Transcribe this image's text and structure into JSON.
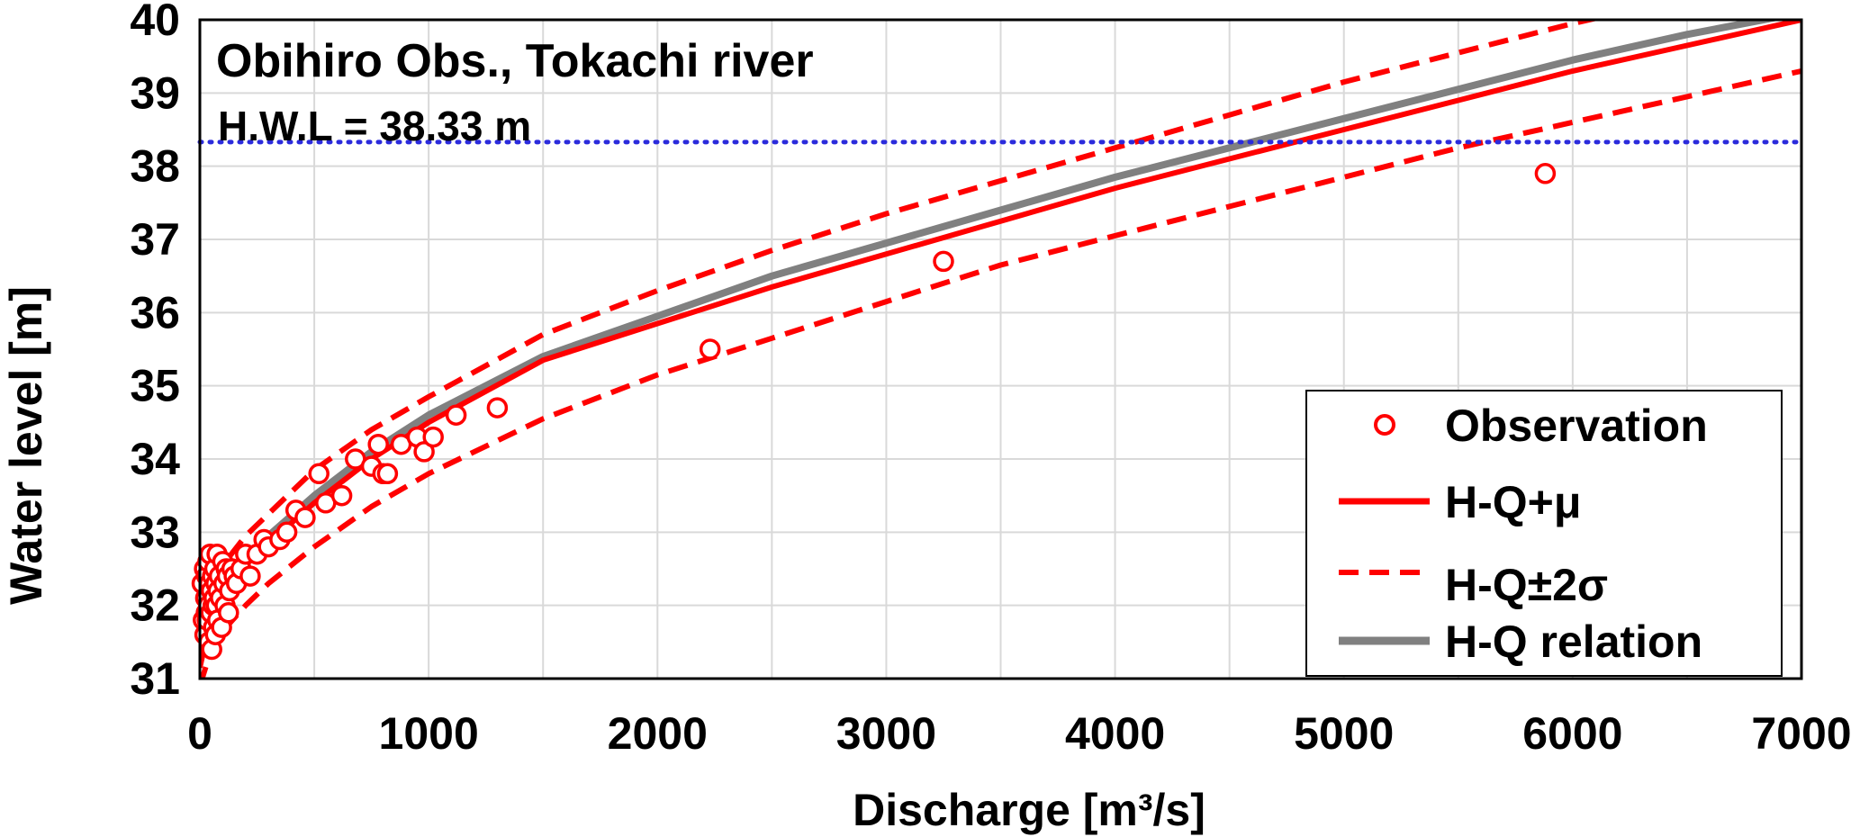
{
  "chart_data": {
    "type": "line",
    "title": "Obihiro Obs., Tokachi river",
    "annotation": "H.W.L = 38.33 m",
    "hwl": 38.33,
    "xlabel": "Discharge [m³/s]",
    "ylabel": "Water level [m]",
    "xlim": [
      0,
      7000
    ],
    "ylim": [
      31,
      40
    ],
    "xticks": [
      0,
      1000,
      2000,
      3000,
      4000,
      5000,
      6000,
      7000
    ],
    "yticks": [
      31,
      32,
      33,
      34,
      35,
      36,
      37,
      38,
      39,
      40
    ],
    "grid": true,
    "legend_position": "bottom-right",
    "legend": [
      "Observation",
      "H-Q+μ",
      "H-Q±2σ",
      "H-Q relation"
    ],
    "colors": {
      "observation": "#ff0000",
      "mean": "#ff0000",
      "band": "#ff0000",
      "hq_relation": "#808080",
      "hwl_line": "#2b2bdc",
      "grid": "#d9d9d9"
    },
    "series": [
      {
        "name": "H-Q+μ",
        "style": "solid",
        "x": [
          0,
          50,
          100,
          200,
          300,
          500,
          750,
          1000,
          1500,
          2000,
          2500,
          3000,
          3500,
          4000,
          4500,
          5000,
          5500,
          6000,
          6500,
          7000
        ],
        "y": [
          31.15,
          31.85,
          32.15,
          32.55,
          32.85,
          33.4,
          34.0,
          34.5,
          35.35,
          35.85,
          36.35,
          36.8,
          37.25,
          37.7,
          38.1,
          38.5,
          38.9,
          39.3,
          39.65,
          40.0
        ]
      },
      {
        "name": "H-Q+2σ",
        "style": "dashed",
        "x": [
          0,
          50,
          100,
          200,
          300,
          500,
          750,
          1000,
          1500,
          2000,
          2500,
          3000,
          3500,
          4000,
          4500,
          5000,
          5500,
          6000,
          6500
        ],
        "y": [
          31.5,
          32.25,
          32.55,
          32.95,
          33.25,
          33.85,
          34.4,
          34.85,
          35.7,
          36.3,
          36.85,
          37.35,
          37.8,
          38.25,
          38.7,
          39.15,
          39.55,
          39.95,
          40.3
        ]
      },
      {
        "name": "H-Q−2σ",
        "style": "dashed",
        "x": [
          0,
          50,
          100,
          200,
          300,
          500,
          750,
          1000,
          1500,
          2000,
          2500,
          3000,
          3500,
          4000,
          4500,
          5000,
          5500,
          6000,
          6500,
          7000
        ],
        "y": [
          30.9,
          31.4,
          31.65,
          32.0,
          32.3,
          32.8,
          33.35,
          33.8,
          34.55,
          35.15,
          35.65,
          36.15,
          36.65,
          37.05,
          37.45,
          37.85,
          38.25,
          38.6,
          38.95,
          39.3
        ]
      },
      {
        "name": "H-Q relation",
        "style": "solid",
        "x": [
          50,
          100,
          200,
          300,
          500,
          750,
          1000,
          1500,
          2000,
          2500,
          3000,
          3500,
          4000,
          4500,
          5000,
          5500,
          6000,
          6500,
          7000
        ],
        "y": [
          32.2,
          32.35,
          32.65,
          32.95,
          33.5,
          34.1,
          34.6,
          35.4,
          35.95,
          36.5,
          36.95,
          37.4,
          37.85,
          38.25,
          38.65,
          39.05,
          39.45,
          39.8,
          40.1
        ]
      }
    ],
    "observations": {
      "name": "Observation",
      "x": [
        10,
        15,
        20,
        22,
        25,
        28,
        30,
        32,
        35,
        38,
        40,
        42,
        45,
        48,
        50,
        52,
        55,
        58,
        60,
        62,
        65,
        68,
        70,
        72,
        75,
        78,
        80,
        85,
        90,
        95,
        100,
        105,
        110,
        115,
        120,
        125,
        130,
        140,
        150,
        160,
        180,
        200,
        220,
        250,
        280,
        300,
        350,
        380,
        420,
        460,
        520,
        550,
        620,
        680,
        750,
        780,
        800,
        820,
        880,
        950,
        980,
        1020,
        1120,
        1300,
        2230,
        3250,
        5880
      ],
      "y": [
        32.3,
        31.8,
        32.5,
        31.6,
        32.1,
        31.9,
        32.4,
        31.8,
        32.6,
        32.0,
        31.5,
        32.3,
        32.7,
        31.9,
        32.2,
        31.4,
        32.4,
        32.0,
        31.7,
        32.1,
        32.5,
        31.6,
        32.3,
        32.0,
        32.7,
        31.8,
        32.2,
        32.4,
        32.1,
        31.7,
        32.6,
        32.3,
        32.0,
        32.5,
        32.4,
        31.9,
        32.2,
        32.5,
        32.4,
        32.3,
        32.5,
        32.7,
        32.4,
        32.7,
        32.9,
        32.8,
        32.9,
        33.0,
        33.3,
        33.2,
        33.8,
        33.4,
        33.5,
        34.0,
        33.9,
        34.2,
        33.8,
        33.8,
        34.2,
        34.3,
        34.1,
        34.3,
        34.6,
        34.7,
        35.5,
        36.7,
        37.9
      ]
    }
  }
}
